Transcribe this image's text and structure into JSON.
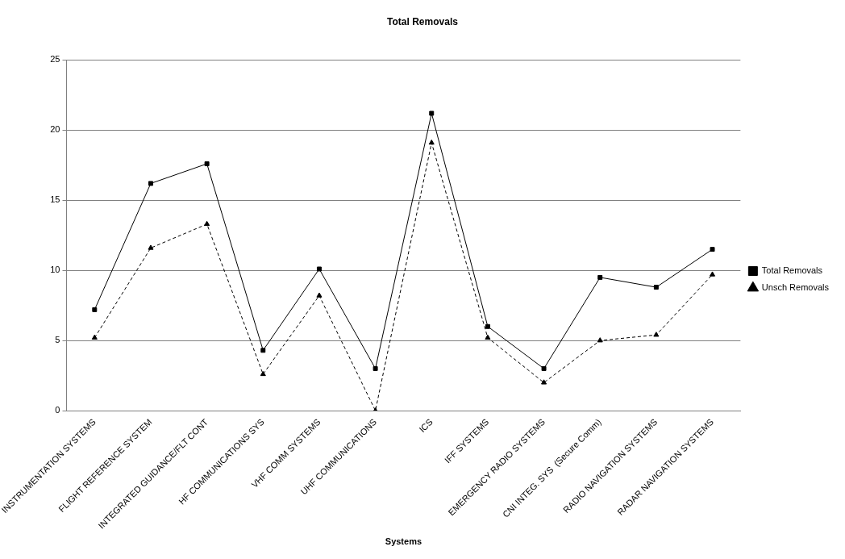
{
  "chart_data": {
    "type": "line",
    "title": "Total Removals",
    "xlabel": "Systems",
    "categories": [
      "INSTRUMENTATION SYSTEMS",
      "FLIGHT REFERENCE SYSTEM",
      "INTEGRATED GUIDANCE/FLT CONT",
      "HF COMMUNICATIONS SYS",
      "VHF COMM SYSTEMS",
      "UHF COMMUNICATIONS",
      "ICS",
      "IFF SYSTEMS",
      "EMERGENCY RADIO SYSTEMS",
      "CNI INTEG. SYS  (Secure Comm)",
      "RADIO NAVIGATION SYSTEMS",
      "RADAR NAVIGATION SYSTEMS"
    ],
    "series": [
      {
        "name": "Total Removals",
        "color": "#000000",
        "marker": "square",
        "line_style": "solid",
        "values": [
          7.2,
          16.2,
          17.6,
          4.3,
          10.1,
          3.0,
          21.2,
          6.0,
          3.0,
          9.5,
          8.8,
          11.5
        ]
      },
      {
        "name": "Unsch Removals",
        "color": "#000000",
        "marker": "triangle",
        "line_style": "dashed",
        "values": [
          5.2,
          11.6,
          13.3,
          2.6,
          8.2,
          0,
          19.1,
          5.2,
          2.0,
          5.0,
          5.4,
          9.7
        ]
      }
    ],
    "ylim": [
      0,
      25
    ],
    "yticks": [
      0,
      5,
      10,
      15,
      20,
      25
    ],
    "grid": "y",
    "legend": "right"
  }
}
